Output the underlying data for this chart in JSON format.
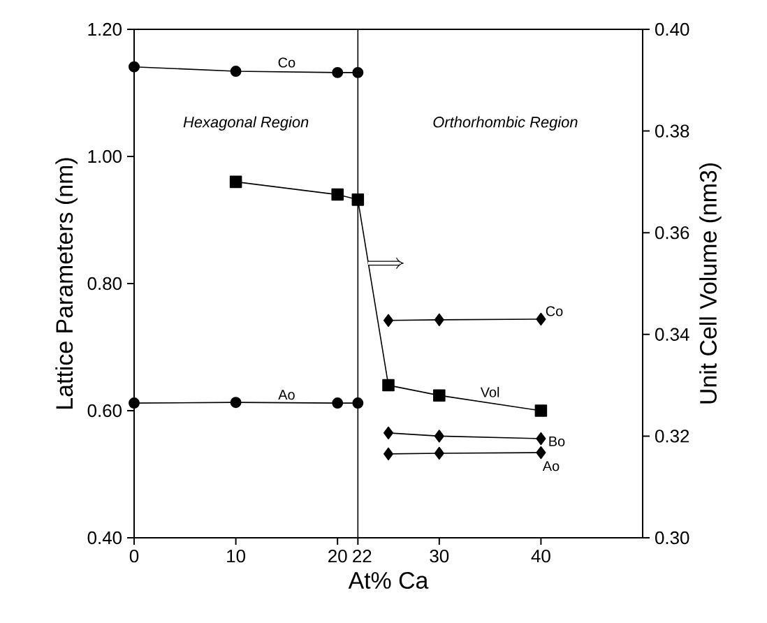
{
  "chart_data": {
    "type": "line",
    "xlabel": "At% Ca",
    "ylabel": "Lattice Parameters (nm)",
    "y2label": "Unit Cell Volume (nm3)",
    "xlim": [
      0,
      50
    ],
    "xticks": [
      0,
      10,
      20,
      22,
      30,
      40
    ],
    "ylim": [
      0.4,
      1.2
    ],
    "yticks": [
      {
        "value": 0.4,
        "label": "0.40"
      },
      {
        "value": 0.6,
        "label": "0.60"
      },
      {
        "value": 0.8,
        "label": "0.80"
      },
      {
        "value": 1.0,
        "label": "1.00"
      },
      {
        "value": 1.2,
        "label": "1.20"
      }
    ],
    "y2lim": [
      0.3,
      0.4
    ],
    "y2ticks": [
      {
        "value": 0.3,
        "label": "0.30"
      },
      {
        "value": 0.32,
        "label": "0.32"
      },
      {
        "value": 0.34,
        "label": "0.34"
      },
      {
        "value": 0.36,
        "label": "0.36"
      },
      {
        "value": 0.38,
        "label": "0.38"
      },
      {
        "value": 0.4,
        "label": "0.40"
      }
    ],
    "grid": false,
    "line_style": "solid",
    "ref_lines": [
      {
        "axis": "x",
        "value": 22,
        "color": "#000000"
      }
    ],
    "annotations": [
      "Hexagonal Region",
      "Orthorhombic Region"
    ],
    "series": [
      {
        "name": "Co",
        "color": "#000000",
        "marker": "circle",
        "x": [
          0,
          10,
          20,
          22
        ],
        "values": [
          1.141,
          1.134,
          1.132,
          1.132
        ]
      },
      {
        "name": "Ao",
        "color": "#000000",
        "marker": "circle",
        "x": [
          0,
          10,
          20,
          22
        ],
        "values": [
          0.612,
          0.613,
          0.612,
          0.612
        ]
      },
      {
        "name": "Vol",
        "color": "#000000",
        "marker": "square",
        "axis": "y2",
        "x": [
          10,
          20,
          22,
          25,
          30,
          40
        ],
        "values": [
          0.37,
          0.3675,
          0.3665,
          0.33,
          0.328,
          0.325
        ]
      },
      {
        "name": "Co",
        "color": "#000000",
        "marker": "diamond",
        "x": [
          25,
          30,
          40
        ],
        "values": [
          0.742,
          0.743,
          0.744
        ]
      },
      {
        "name": "Bo",
        "color": "#000000",
        "marker": "diamond",
        "x": [
          25,
          30,
          40
        ],
        "values": [
          0.565,
          0.56,
          0.556
        ]
      },
      {
        "name": "Ao",
        "color": "#000000",
        "marker": "diamond",
        "x": [
          25,
          30,
          40
        ],
        "values": [
          0.532,
          0.533,
          0.534
        ]
      }
    ]
  }
}
